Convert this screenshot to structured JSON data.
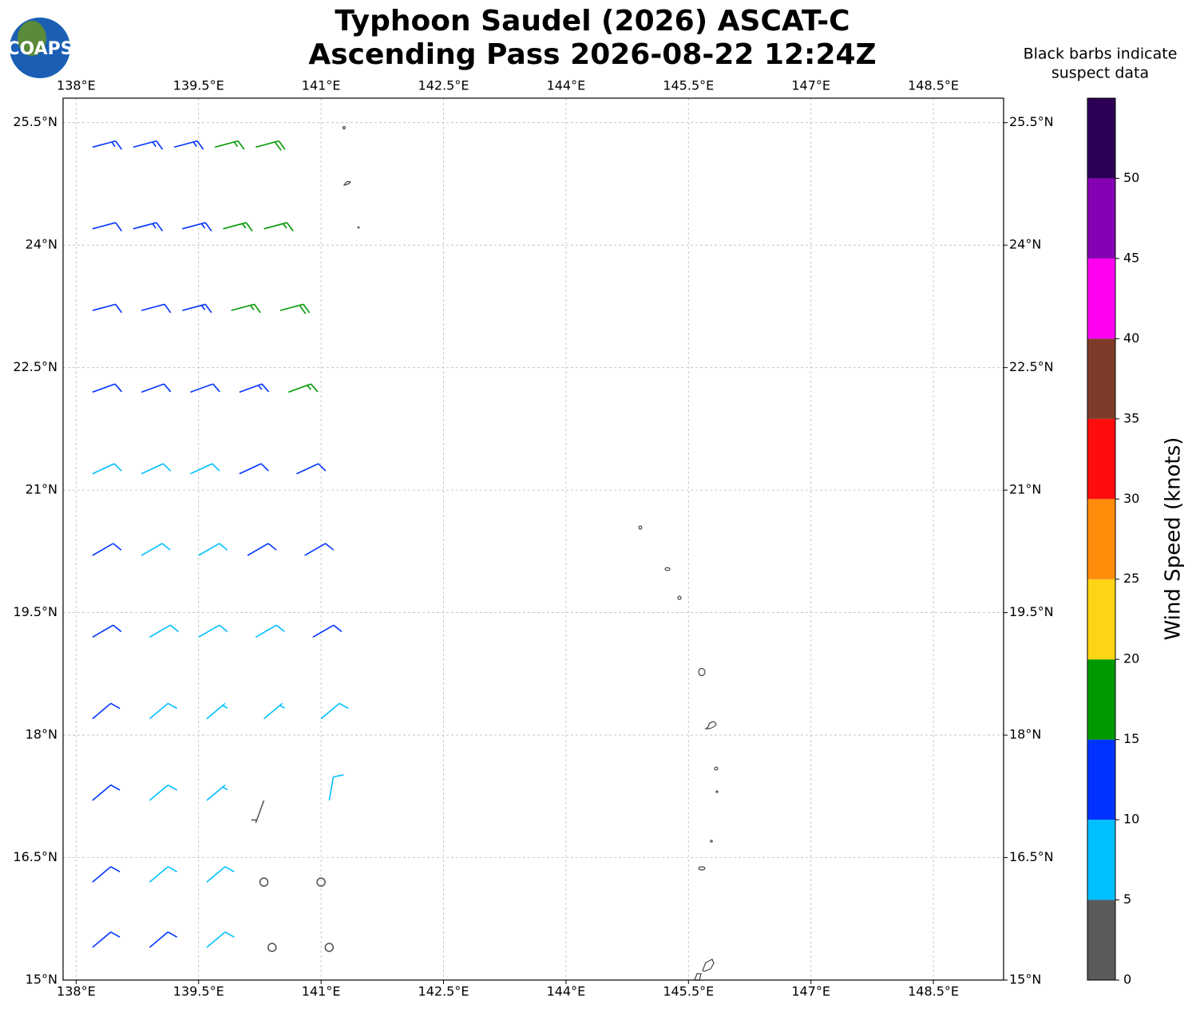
{
  "chart_data": {
    "type": "barb-map",
    "title": [
      "Typhoon Saudel (2026) ASCAT-C",
      "Ascending Pass 2026-08-22 12:24Z"
    ],
    "logo": "COAPS",
    "note": [
      "Black barbs indicate",
      "suspect data"
    ],
    "xlim": [
      137.84,
      149.36
    ],
    "ylim": [
      15,
      25.8
    ],
    "grid": true,
    "xticks": [
      {
        "value": 138,
        "label": "138°E"
      },
      {
        "value": 139.5,
        "label": "139.5°E"
      },
      {
        "value": 141,
        "label": "141°E"
      },
      {
        "value": 142.5,
        "label": "142.5°E"
      },
      {
        "value": 144,
        "label": "144°E"
      },
      {
        "value": 145.5,
        "label": "145.5°E"
      },
      {
        "value": 147,
        "label": "147°E"
      },
      {
        "value": 148.5,
        "label": "148.5°E"
      }
    ],
    "yticks": [
      {
        "value": 15,
        "label": "15°N"
      },
      {
        "value": 16.5,
        "label": "16.5°N"
      },
      {
        "value": 18,
        "label": "18°N"
      },
      {
        "value": 19.5,
        "label": "19.5°N"
      },
      {
        "value": 21,
        "label": "21°N"
      },
      {
        "value": 22.5,
        "label": "22.5°N"
      },
      {
        "value": 24,
        "label": "24°N"
      },
      {
        "value": 25.5,
        "label": "25.5°N"
      }
    ],
    "colorbar": {
      "label": "Wind Speed (knots)",
      "bounds": [
        0,
        5,
        10,
        15,
        20,
        25,
        30,
        35,
        40,
        45,
        50,
        55
      ],
      "colors": [
        "#5a5a5a",
        "#00bfff",
        "#0033ff",
        "#009900",
        "#ffd414",
        "#ff8c0a",
        "#ff0d0d",
        "#7f3b2a",
        "#ff00f0",
        "#8500b2",
        "#2d0058"
      ],
      "ticks": [
        0,
        5,
        10,
        15,
        20,
        25,
        30,
        35,
        40,
        45,
        50
      ]
    },
    "barbs": {
      "lon": [
        138.2,
        138.7,
        139.2,
        139.7,
        140.2,
        138.2,
        138.7,
        139.3,
        139.8,
        140.3,
        138.2,
        138.8,
        139.3,
        139.9,
        140.5,
        138.2,
        138.8,
        139.4,
        140.0,
        140.6,
        138.2,
        138.8,
        139.4,
        140.0,
        140.7,
        138.2,
        138.8,
        139.5,
        140.1,
        140.8,
        138.2,
        138.9,
        139.5,
        140.2,
        140.9,
        138.2,
        138.9,
        139.6,
        140.3,
        141.0,
        138.2,
        138.9,
        139.6,
        140.3,
        141.1,
        138.2,
        138.9,
        139.6,
        140.3,
        141.0,
        138.2,
        138.9,
        139.6,
        140.4,
        141.1
      ],
      "lat": [
        25.2,
        25.2,
        25.2,
        25.2,
        25.2,
        24.2,
        24.2,
        24.2,
        24.2,
        24.2,
        23.2,
        23.2,
        23.2,
        23.2,
        23.2,
        22.2,
        22.2,
        22.2,
        22.2,
        22.2,
        21.2,
        21.2,
        21.2,
        21.2,
        21.2,
        20.2,
        20.2,
        20.2,
        20.2,
        20.2,
        19.2,
        19.2,
        19.2,
        19.2,
        19.2,
        18.2,
        18.2,
        18.2,
        18.2,
        18.2,
        17.2,
        17.2,
        17.2,
        17.2,
        17.2,
        16.2,
        16.2,
        16.2,
        16.2,
        16.2,
        15.4,
        15.4,
        15.4,
        15.4,
        15.4
      ],
      "speed": [
        13,
        13,
        14,
        17,
        18,
        12,
        13,
        13,
        16,
        17,
        12,
        12,
        13,
        16,
        18,
        12,
        11,
        12,
        14,
        17,
        9,
        8,
        9,
        11,
        12,
        11,
        8,
        8,
        10,
        12,
        12,
        8,
        8,
        9,
        11,
        11,
        8,
        7,
        6,
        8,
        11,
        8,
        7,
        3,
        8,
        11,
        9,
        8,
        0,
        2,
        12,
        10,
        9,
        0,
        1
      ],
      "direction": [
        75,
        75,
        75,
        75,
        75,
        75,
        75,
        75,
        75,
        75,
        75,
        75,
        75,
        75,
        75,
        70,
        70,
        70,
        70,
        70,
        65,
        65,
        65,
        65,
        65,
        60,
        60,
        60,
        60,
        60,
        60,
        60,
        60,
        60,
        60,
        50,
        50,
        50,
        50,
        50,
        50,
        50,
        50,
        200,
        10,
        50,
        50,
        50,
        0,
        300,
        50,
        50,
        50,
        0,
        140
      ]
    }
  }
}
